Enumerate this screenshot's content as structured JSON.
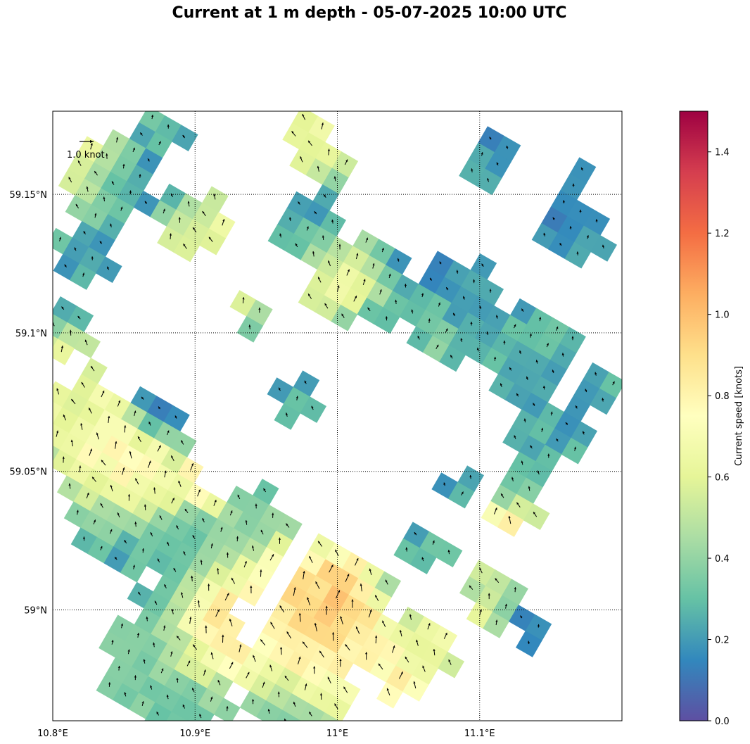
{
  "title": "Current at 1 m depth - 05-07-2025 10:00 UTC",
  "map": {
    "lon_range": [
      10.8,
      11.2
    ],
    "lat_range": [
      58.96,
      59.18
    ],
    "lon_ticks": [
      {
        "value": 10.8,
        "label": "10.8°E"
      },
      {
        "value": 10.9,
        "label": "10.9°E"
      },
      {
        "value": 11.0,
        "label": "11°E"
      },
      {
        "value": 11.1,
        "label": "11.1°E"
      }
    ],
    "lat_ticks": [
      {
        "value": 59.15,
        "label": "59.15°N"
      },
      {
        "value": 59.1,
        "label": "59.1°N"
      },
      {
        "value": 59.05,
        "label": "59.05°N"
      },
      {
        "value": 59.0,
        "label": "59°N"
      }
    ],
    "gridlines": "dotted",
    "quiver_key_label": "1.0 knot",
    "quiver_key_speed": 1.0
  },
  "colorbar": {
    "label": "Current speed [knots]",
    "range": [
      0,
      1.5
    ],
    "ticks": [
      "0.0",
      "0.2",
      "0.4",
      "0.6",
      "0.8",
      "1.0",
      "1.2",
      "1.4"
    ],
    "colormap": "Spectral_r"
  }
}
